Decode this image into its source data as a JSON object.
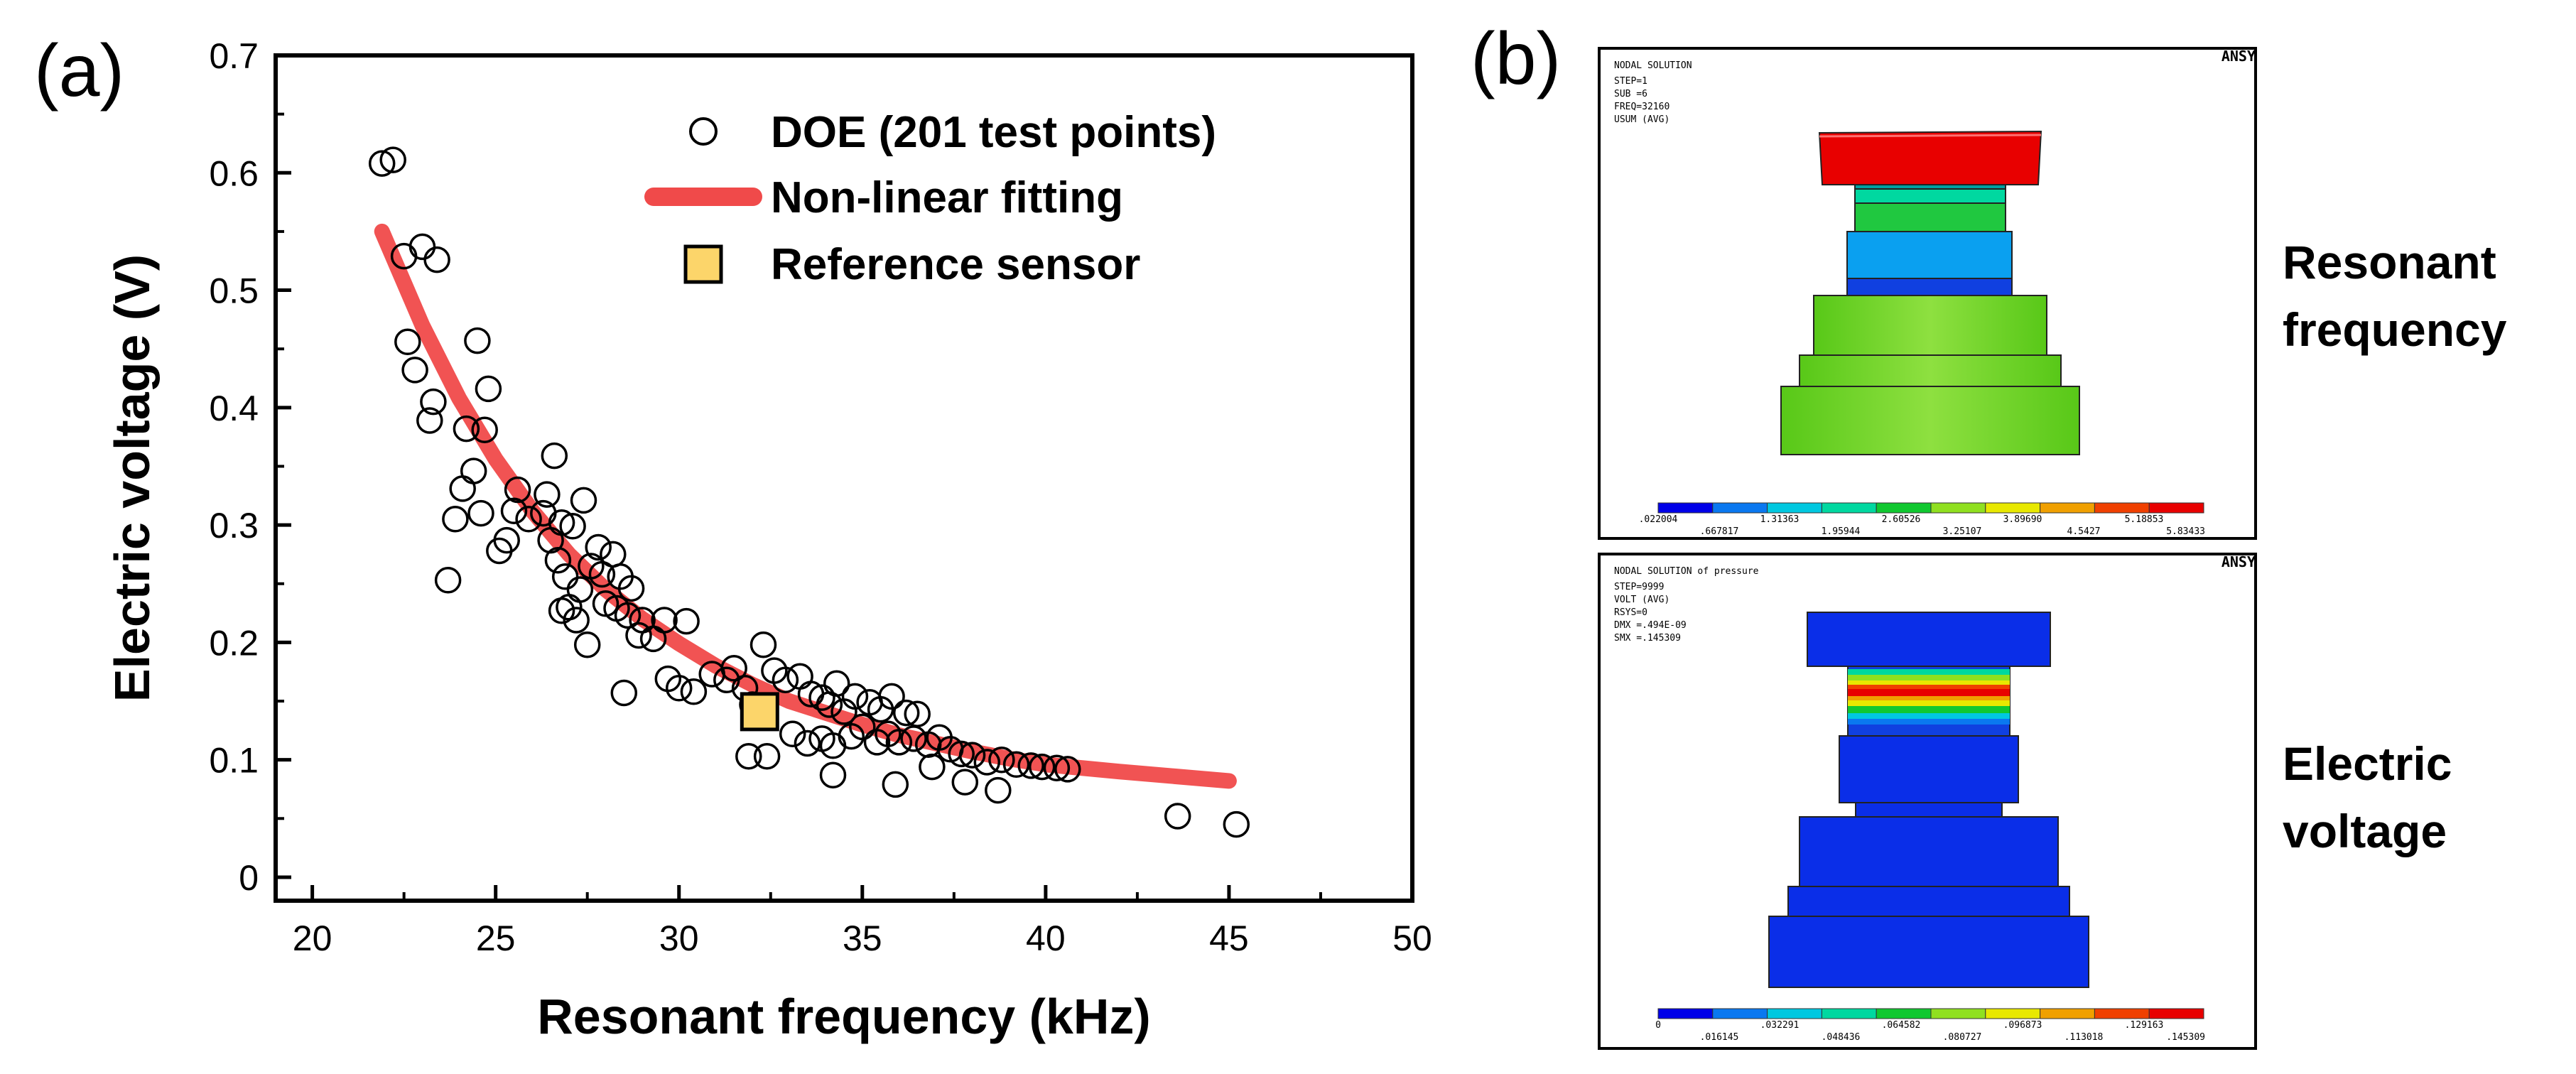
{
  "panel_a": {
    "label": "(a)",
    "legend": {
      "doe": "DOE (201 test points)",
      "fit": "Non-linear fitting",
      "ref": "Reference sensor"
    }
  },
  "panel_b": {
    "label": "(b)",
    "row1_label_1": "Resonant",
    "row1_label_2": "frequency",
    "row2_label_1": "Electric",
    "row2_label_2": "voltage",
    "sim1": {
      "corner": "ANSY",
      "info": [
        "NODAL SOLUTION",
        "STEP=1",
        "SUB =6",
        "FREQ=32160",
        "USUM     (AVG)"
      ],
      "scale_top": [
        ".022004",
        "1.31363",
        "2.60526",
        "3.89690",
        "5.18853"
      ],
      "scale_bottom": [
        ".667817",
        "1.95944",
        "3.25107",
        "4.5427",
        "5.83433"
      ]
    },
    "sim2": {
      "corner": "ANSY",
      "info": [
        "NODAL SOLUTION of pressure",
        "STEP=9999",
        "VOLT     (AVG)",
        "RSYS=0",
        "DMX =.494E-09",
        "SMX =.145309"
      ],
      "scale_top": [
        "0",
        ".032291",
        ".064582",
        ".096873",
        ".129163"
      ],
      "scale_bottom": [
        ".016145",
        ".048436",
        ".080727",
        ".113018",
        ".145309"
      ]
    }
  },
  "colors": {
    "fit": "#f04a4a",
    "ref_fill": "#fcd56a",
    "contour": [
      "#0000e8",
      "#0a78f0",
      "#00c8e0",
      "#00d8a0",
      "#10c830",
      "#90e020",
      "#e8e800",
      "#f0a000",
      "#f04000",
      "#e80000"
    ]
  },
  "chart_data": {
    "type": "scatter",
    "xlabel": "Resonant frequency (kHz)",
    "ylabel": "Electric voltage (V)",
    "xlim": [
      19,
      50
    ],
    "ylim": [
      -0.02,
      0.7
    ],
    "xticks": [
      "20",
      "25",
      "30",
      "35",
      "40",
      "45",
      "50"
    ],
    "yticks": [
      "0",
      "0.1",
      "0.2",
      "0.3",
      "0.4",
      "0.5",
      "0.6",
      "0.7"
    ],
    "series": [
      {
        "name": "DOE (201 test points)",
        "marker": "open-circle",
        "points": [
          [
            21.9,
            0.608
          ],
          [
            22.2,
            0.611
          ],
          [
            22.5,
            0.529
          ],
          [
            23.0,
            0.537
          ],
          [
            23.4,
            0.526
          ],
          [
            22.6,
            0.456
          ],
          [
            22.8,
            0.432
          ],
          [
            23.3,
            0.405
          ],
          [
            23.2,
            0.389
          ],
          [
            24.5,
            0.457
          ],
          [
            24.8,
            0.416
          ],
          [
            24.2,
            0.382
          ],
          [
            24.7,
            0.381
          ],
          [
            24.4,
            0.346
          ],
          [
            24.1,
            0.331
          ],
          [
            23.7,
            0.253
          ],
          [
            24.6,
            0.31
          ],
          [
            23.9,
            0.305
          ],
          [
            25.3,
            0.287
          ],
          [
            25.1,
            0.278
          ],
          [
            25.6,
            0.33
          ],
          [
            25.5,
            0.312
          ],
          [
            25.9,
            0.305
          ],
          [
            26.4,
            0.326
          ],
          [
            26.6,
            0.359
          ],
          [
            26.3,
            0.31
          ],
          [
            26.8,
            0.302
          ],
          [
            27.1,
            0.299
          ],
          [
            26.5,
            0.287
          ],
          [
            26.7,
            0.27
          ],
          [
            27.4,
            0.321
          ],
          [
            27.8,
            0.281
          ],
          [
            28.2,
            0.275
          ],
          [
            27.6,
            0.265
          ],
          [
            27.9,
            0.258
          ],
          [
            28.4,
            0.256
          ],
          [
            28.7,
            0.246
          ],
          [
            26.9,
            0.256
          ],
          [
            27.3,
            0.245
          ],
          [
            27.0,
            0.23
          ],
          [
            26.8,
            0.227
          ],
          [
            27.2,
            0.219
          ],
          [
            28.0,
            0.233
          ],
          [
            28.3,
            0.229
          ],
          [
            28.6,
            0.223
          ],
          [
            27.5,
            0.198
          ],
          [
            29.0,
            0.219
          ],
          [
            28.9,
            0.206
          ],
          [
            29.3,
            0.203
          ],
          [
            29.6,
            0.219
          ],
          [
            30.2,
            0.218
          ],
          [
            28.5,
            0.157
          ],
          [
            29.7,
            0.169
          ],
          [
            30.0,
            0.161
          ],
          [
            30.4,
            0.158
          ],
          [
            30.9,
            0.173
          ],
          [
            31.3,
            0.168
          ],
          [
            31.5,
            0.178
          ],
          [
            31.8,
            0.161
          ],
          [
            32.0,
            0.147
          ],
          [
            32.3,
            0.198
          ],
          [
            32.6,
            0.176
          ],
          [
            32.9,
            0.168
          ],
          [
            33.3,
            0.171
          ],
          [
            33.6,
            0.156
          ],
          [
            33.9,
            0.153
          ],
          [
            34.3,
            0.165
          ],
          [
            34.1,
            0.147
          ],
          [
            34.5,
            0.141
          ],
          [
            34.8,
            0.154
          ],
          [
            35.2,
            0.149
          ],
          [
            35.5,
            0.143
          ],
          [
            35.8,
            0.154
          ],
          [
            36.2,
            0.14
          ],
          [
            36.5,
            0.139
          ],
          [
            31.9,
            0.103
          ],
          [
            32.4,
            0.103
          ],
          [
            33.1,
            0.122
          ],
          [
            33.5,
            0.114
          ],
          [
            33.9,
            0.118
          ],
          [
            34.2,
            0.112
          ],
          [
            34.7,
            0.12
          ],
          [
            35.0,
            0.128
          ],
          [
            35.4,
            0.115
          ],
          [
            35.7,
            0.122
          ],
          [
            36.0,
            0.115
          ],
          [
            36.4,
            0.118
          ],
          [
            36.8,
            0.113
          ],
          [
            37.1,
            0.119
          ],
          [
            37.4,
            0.109
          ],
          [
            37.7,
            0.105
          ],
          [
            38.0,
            0.104
          ],
          [
            38.4,
            0.098
          ],
          [
            38.8,
            0.1
          ],
          [
            39.2,
            0.096
          ],
          [
            39.6,
            0.095
          ],
          [
            39.9,
            0.094
          ],
          [
            40.3,
            0.093
          ],
          [
            40.6,
            0.092
          ],
          [
            34.2,
            0.087
          ],
          [
            35.9,
            0.079
          ],
          [
            37.8,
            0.081
          ],
          [
            38.7,
            0.074
          ],
          [
            36.9,
            0.094
          ],
          [
            43.6,
            0.052
          ],
          [
            45.2,
            0.045
          ]
        ]
      },
      {
        "name": "Non-linear fitting",
        "marker": "line",
        "x": [
          21.9,
          23.0,
          24.0,
          25.0,
          26.0,
          27.0,
          28.0,
          29.0,
          30.0,
          31.0,
          32.0,
          33.0,
          34.0,
          35.0,
          36.0,
          37.0,
          38.0,
          39.0,
          40.0,
          42.0,
          45.0
        ],
        "y": [
          0.55,
          0.47,
          0.408,
          0.356,
          0.312,
          0.275,
          0.245,
          0.22,
          0.199,
          0.18,
          0.164,
          0.15,
          0.14,
          0.13,
          0.121,
          0.114,
          0.107,
          0.101,
          0.096,
          0.09,
          0.082
        ]
      },
      {
        "name": "Reference sensor",
        "marker": "filled-square",
        "points": [
          [
            32.2,
            0.141
          ]
        ]
      }
    ]
  }
}
